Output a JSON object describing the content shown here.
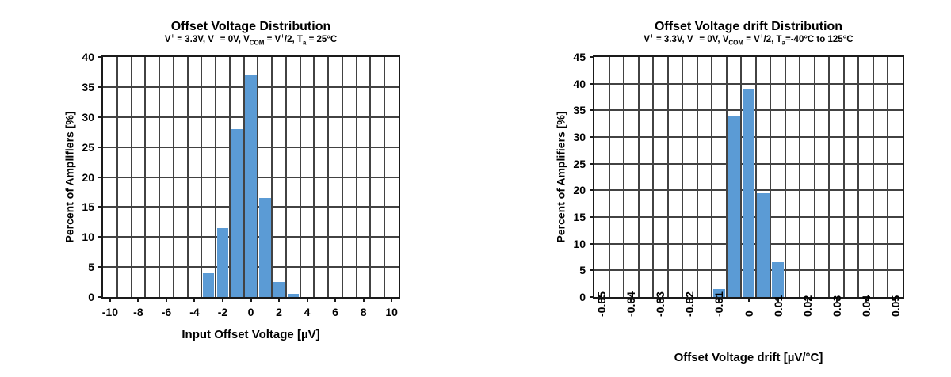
{
  "page": {
    "background": "#ffffff"
  },
  "style": {
    "bar_color": "#5B9BD5",
    "grid_color": "#424242",
    "border_color": "#1a1a1a",
    "text_color": "#000000"
  },
  "chart_data": [
    {
      "type": "bar",
      "title": "Offset Voltage Distribution",
      "subtitle_parts": [
        {
          "t": "V"
        },
        {
          "t": "+",
          "s": "sup"
        },
        {
          "t": " = 3.3V, V"
        },
        {
          "t": "−",
          "s": "sup"
        },
        {
          "t": " = 0V, V"
        },
        {
          "t": "COM",
          "s": "sub"
        },
        {
          "t": " = V"
        },
        {
          "t": "+",
          "s": "sup"
        },
        {
          "t": "/2, T",
          "s": ""
        },
        {
          "t": "a",
          "s": "sub"
        },
        {
          "t": " = 25°C"
        }
      ],
      "xlabel": "Input Offset Voltage [µV]",
      "ylabel": "Percent of Amplifiers [%]",
      "x_axis": {
        "min": -10.5,
        "max": 10.5,
        "bin_width": 1,
        "rotated_labels": false,
        "ticks": [
          {
            "v": -10,
            "label": "-10"
          },
          {
            "v": -8,
            "label": "-8"
          },
          {
            "v": -6,
            "label": "-6"
          },
          {
            "v": -4,
            "label": "-4"
          },
          {
            "v": -2,
            "label": "-2"
          },
          {
            "v": 0,
            "label": "0"
          },
          {
            "v": 2,
            "label": "2"
          },
          {
            "v": 4,
            "label": "4"
          },
          {
            "v": 6,
            "label": "6"
          },
          {
            "v": 8,
            "label": "8"
          },
          {
            "v": 10,
            "label": "10"
          }
        ]
      },
      "y_axis": {
        "min": 0,
        "max": 40,
        "step": 5,
        "tick_labels": [
          "0",
          "5",
          "10",
          "15",
          "20",
          "25",
          "30",
          "35",
          "40"
        ]
      },
      "grid": true,
      "legend": null,
      "bars": [
        {
          "x": -3,
          "pct": 4
        },
        {
          "x": -2,
          "pct": 11.5
        },
        {
          "x": -1,
          "pct": 28
        },
        {
          "x": 0,
          "pct": 37
        },
        {
          "x": 1,
          "pct": 16.5
        },
        {
          "x": 2,
          "pct": 2.5
        },
        {
          "x": 3,
          "pct": 0.5
        }
      ]
    },
    {
      "type": "bar",
      "title": "Offset Voltage drift Distribution",
      "subtitle_parts": [
        {
          "t": "V"
        },
        {
          "t": "+",
          "s": "sup"
        },
        {
          "t": " = 3.3V, V"
        },
        {
          "t": "−",
          "s": "sup"
        },
        {
          "t": " = 0V, V"
        },
        {
          "t": "COM",
          "s": "sub"
        },
        {
          "t": " = V"
        },
        {
          "t": "+",
          "s": "sup"
        },
        {
          "t": "/2, T",
          "s": ""
        },
        {
          "t": "a",
          "s": "sub"
        },
        {
          "t": "=-40°C to 125°C"
        }
      ],
      "xlabel": "Offset Voltage drift [µV/°C]",
      "ylabel": "Percent of Amplifiers [%]",
      "x_axis": {
        "min": -0.0525,
        "max": 0.0525,
        "bin_width": 0.005,
        "rotated_labels": true,
        "ticks": [
          {
            "v": -0.05,
            "label": "-0.05"
          },
          {
            "v": -0.04,
            "label": "-0.04"
          },
          {
            "v": -0.03,
            "label": "-0.03"
          },
          {
            "v": -0.02,
            "label": "-0.02"
          },
          {
            "v": -0.01,
            "label": "-0.01"
          },
          {
            "v": 0,
            "label": "0"
          },
          {
            "v": 0.01,
            "label": "0.01"
          },
          {
            "v": 0.02,
            "label": "0.02"
          },
          {
            "v": 0.03,
            "label": "0.03"
          },
          {
            "v": 0.04,
            "label": "0.04"
          },
          {
            "v": 0.05,
            "label": "0.05"
          }
        ]
      },
      "y_axis": {
        "min": 0,
        "max": 45,
        "step": 5,
        "tick_labels": [
          "0",
          "5",
          "10",
          "15",
          "20",
          "25",
          "30",
          "35",
          "40",
          "45"
        ]
      },
      "grid": true,
      "legend": null,
      "bars": [
        {
          "x": -0.01,
          "pct": 1.5
        },
        {
          "x": -0.005,
          "pct": 34
        },
        {
          "x": 0,
          "pct": 39
        },
        {
          "x": 0.005,
          "pct": 19.5
        },
        {
          "x": 0.01,
          "pct": 6.5
        }
      ]
    }
  ]
}
